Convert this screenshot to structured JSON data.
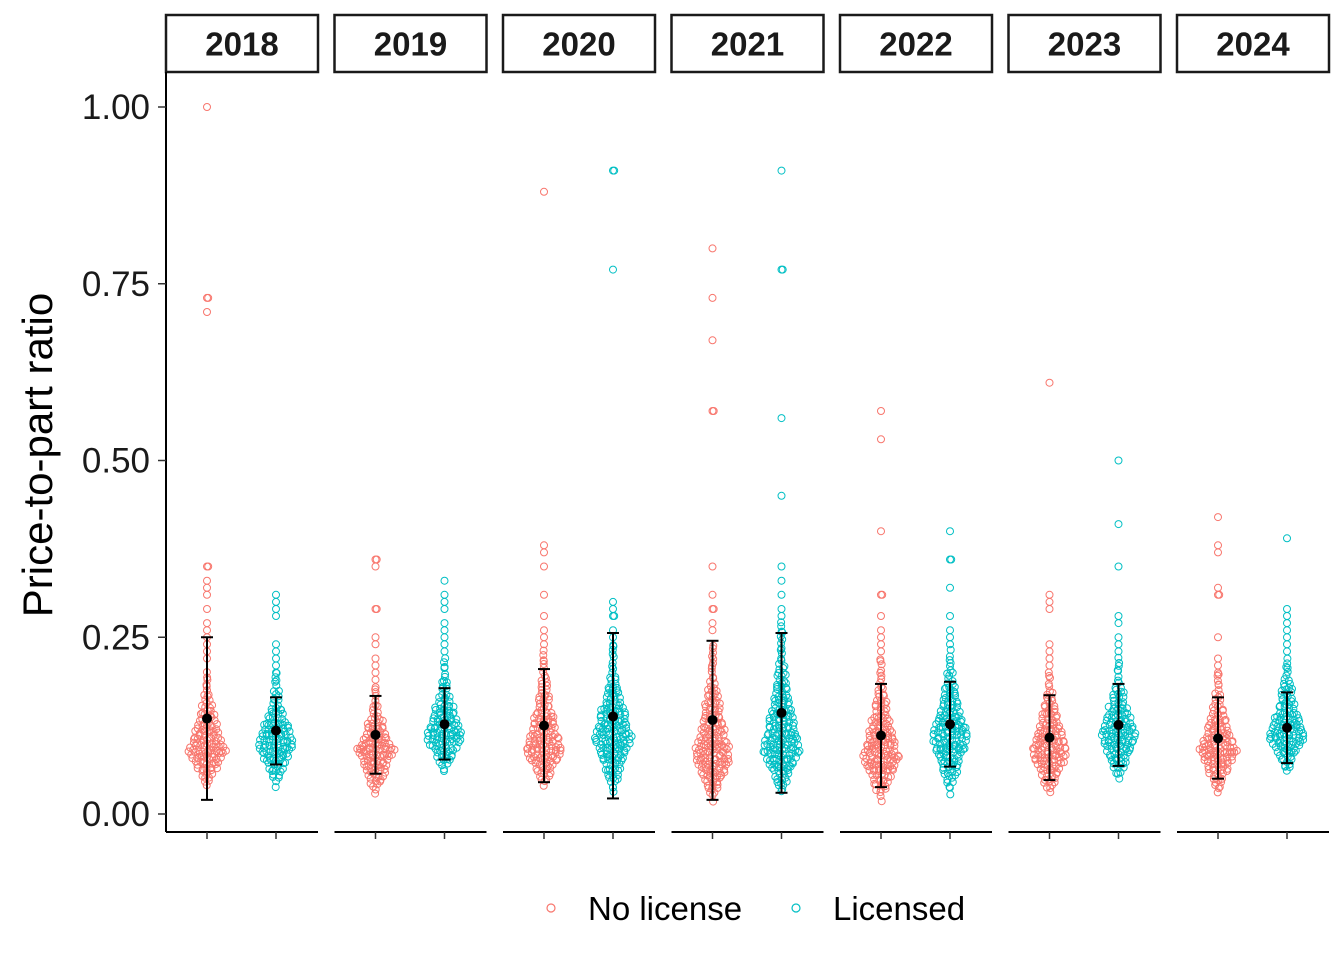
{
  "chart_data": {
    "type": "scatter",
    "subtype": "faceted beeswarm with mean and error bars",
    "title": "",
    "xlabel": "",
    "ylabel": "Price-to-part ratio",
    "ylim": [
      0,
      1
    ],
    "yticks": [
      "0.00",
      "0.25",
      "0.50",
      "0.75",
      "1.00"
    ],
    "grid": false,
    "legend_position": "bottom",
    "facet_by": "year",
    "facets": [
      "2018",
      "2019",
      "2020",
      "2021",
      "2022",
      "2023",
      "2024"
    ],
    "groups": [
      {
        "name": "No license",
        "color": "#F8766D"
      },
      {
        "name": "Licensed",
        "color": "#00BFC4"
      }
    ],
    "panels": [
      {
        "year": "2018",
        "groups": [
          {
            "name": "No license",
            "mean": 0.135,
            "lower": 0.02,
            "upper": 0.25,
            "outliers": [
              1.0,
              0.73,
              0.73,
              0.71,
              0.35,
              0.35,
              0.33,
              0.32,
              0.31,
              0.29,
              0.27,
              0.26,
              0.25,
              0.24,
              0.23,
              0.22
            ],
            "spread": [
              0.04,
              0.2,
              0.09
            ]
          },
          {
            "name": "Licensed",
            "mean": 0.118,
            "lower": 0.07,
            "upper": 0.165,
            "outliers": [
              0.31,
              0.3,
              0.29,
              0.28,
              0.24,
              0.23,
              0.22,
              0.21,
              0.2
            ],
            "spread": [
              0.04,
              0.2,
              0.1
            ]
          }
        ]
      },
      {
        "year": "2019",
        "groups": [
          {
            "name": "No license",
            "mean": 0.112,
            "lower": 0.057,
            "upper": 0.167,
            "outliers": [
              0.36,
              0.36,
              0.35,
              0.29,
              0.29,
              0.25,
              0.24,
              0.22,
              0.21,
              0.2,
              0.19
            ],
            "spread": [
              0.03,
              0.18,
              0.09
            ]
          },
          {
            "name": "Licensed",
            "mean": 0.127,
            "lower": 0.077,
            "upper": 0.178,
            "outliers": [
              0.33,
              0.31,
              0.3,
              0.29,
              0.27,
              0.26,
              0.25,
              0.24,
              0.23
            ],
            "spread": [
              0.06,
              0.22,
              0.11
            ]
          }
        ]
      },
      {
        "year": "2020",
        "groups": [
          {
            "name": "No license",
            "mean": 0.125,
            "lower": 0.045,
            "upper": 0.205,
            "outliers": [
              0.88,
              0.38,
              0.37,
              0.35,
              0.31,
              0.28,
              0.26,
              0.25,
              0.24
            ],
            "spread": [
              0.04,
              0.23,
              0.09
            ]
          },
          {
            "name": "Licensed",
            "mean": 0.138,
            "lower": 0.022,
            "upper": 0.256,
            "outliers": [
              0.91,
              0.91,
              0.77,
              0.3,
              0.29,
              0.28,
              0.28,
              0.26,
              0.25
            ],
            "spread": [
              0.03,
              0.24,
              0.11
            ]
          }
        ]
      },
      {
        "year": "2021",
        "groups": [
          {
            "name": "No license",
            "mean": 0.133,
            "lower": 0.02,
            "upper": 0.245,
            "outliers": [
              0.8,
              0.73,
              0.67,
              0.57,
              0.57,
              0.35,
              0.31,
              0.29,
              0.29,
              0.27,
              0.26
            ],
            "spread": [
              0.02,
              0.24,
              0.08
            ]
          },
          {
            "name": "Licensed",
            "mean": 0.143,
            "lower": 0.03,
            "upper": 0.256,
            "outliers": [
              0.91,
              0.77,
              0.77,
              0.56,
              0.45,
              0.35,
              0.33,
              0.31,
              0.29,
              0.28
            ],
            "spread": [
              0.03,
              0.27,
              0.09
            ]
          }
        ]
      },
      {
        "year": "2022",
        "groups": [
          {
            "name": "No license",
            "mean": 0.111,
            "lower": 0.038,
            "upper": 0.184,
            "outliers": [
              0.57,
              0.53,
              0.4,
              0.31,
              0.31,
              0.28,
              0.26,
              0.25,
              0.24,
              0.23
            ],
            "spread": [
              0.02,
              0.22,
              0.08
            ]
          },
          {
            "name": "Licensed",
            "mean": 0.127,
            "lower": 0.067,
            "upper": 0.187,
            "outliers": [
              0.4,
              0.36,
              0.36,
              0.32,
              0.28,
              0.26,
              0.25,
              0.24
            ],
            "spread": [
              0.03,
              0.23,
              0.11
            ]
          }
        ]
      },
      {
        "year": "2023",
        "groups": [
          {
            "name": "No license",
            "mean": 0.108,
            "lower": 0.048,
            "upper": 0.168,
            "outliers": [
              0.61,
              0.31,
              0.3,
              0.29,
              0.24,
              0.23,
              0.22,
              0.21
            ],
            "spread": [
              0.03,
              0.2,
              0.09
            ]
          },
          {
            "name": "Licensed",
            "mean": 0.126,
            "lower": 0.068,
            "upper": 0.184,
            "outliers": [
              0.5,
              0.41,
              0.35,
              0.28,
              0.27,
              0.25,
              0.24,
              0.23
            ],
            "spread": [
              0.05,
              0.22,
              0.11
            ]
          }
        ]
      },
      {
        "year": "2024",
        "groups": [
          {
            "name": "No license",
            "mean": 0.107,
            "lower": 0.05,
            "upper": 0.165,
            "outliers": [
              0.42,
              0.38,
              0.37,
              0.32,
              0.31,
              0.31,
              0.25,
              0.22,
              0.21,
              0.2
            ],
            "spread": [
              0.03,
              0.2,
              0.09
            ]
          },
          {
            "name": "Licensed",
            "mean": 0.122,
            "lower": 0.072,
            "upper": 0.172,
            "outliers": [
              0.39,
              0.29,
              0.28,
              0.27,
              0.26,
              0.25,
              0.24,
              0.23
            ],
            "spread": [
              0.06,
              0.22,
              0.11
            ]
          }
        ]
      }
    ]
  }
}
